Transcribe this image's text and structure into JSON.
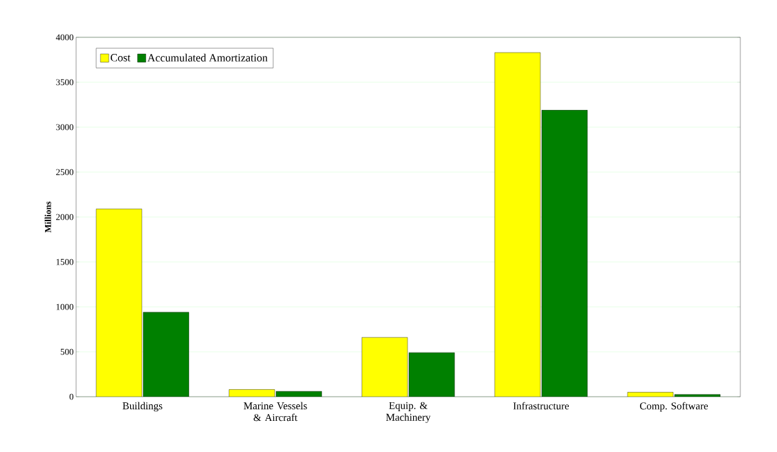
{
  "chart_data": {
    "type": "bar",
    "ylabel": "Millions",
    "categories": [
      "Buildings",
      "Marine Vessels & Aircraft",
      "Equip. & Machinery",
      "Infrastructure",
      "Comp. Software"
    ],
    "series": [
      {
        "name": "Cost",
        "color": "#ffff00",
        "values": [
          2090,
          80,
          660,
          3830,
          50
        ]
      },
      {
        "name": "Accumulated Amortization",
        "color": "#008000",
        "values": [
          940,
          60,
          490,
          3190,
          25
        ]
      }
    ],
    "ylim": [
      0,
      4000
    ],
    "yticks": [
      0,
      500,
      1000,
      1500,
      2000,
      2500,
      3000,
      3500,
      4000
    ],
    "grid": "y",
    "legend": "top left"
  }
}
